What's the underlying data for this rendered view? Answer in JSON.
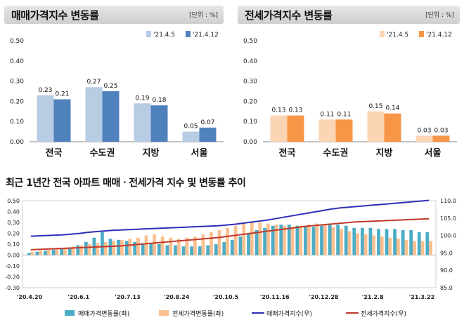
{
  "panels": [
    {
      "title": "매매가격지수 변동률",
      "unit": "[단위 : %]",
      "chart_data": {
        "type": "bar",
        "categories": [
          "전국",
          "수도권",
          "지방",
          "서울"
        ],
        "series": [
          {
            "name": "'21.4.5",
            "values": [
              0.23,
              0.27,
              0.19,
              0.05
            ],
            "color": "#b8cce4"
          },
          {
            "name": "'21.4.12",
            "values": [
              0.21,
              0.25,
              0.18,
              0.07
            ],
            "color": "#4f81bd"
          }
        ],
        "ylim": [
          0,
          0.5
        ],
        "yticks": [
          "0.00",
          "0.10",
          "0.20",
          "0.30",
          "0.40",
          "0.50"
        ],
        "legend": "top-right"
      }
    },
    {
      "title": "전세가격지수 변동률",
      "unit": "[단위 : %]",
      "chart_data": {
        "type": "bar",
        "categories": [
          "전국",
          "수도권",
          "지방",
          "서울"
        ],
        "series": [
          {
            "name": "'21.4.5",
            "values": [
              0.13,
              0.11,
              0.15,
              0.03
            ],
            "color": "#fcd5b4"
          },
          {
            "name": "'21.4.12",
            "values": [
              0.13,
              0.11,
              0.14,
              0.03
            ],
            "color": "#f79646"
          }
        ],
        "ylim": [
          0,
          0.5
        ],
        "yticks": [
          "0.00",
          "0.10",
          "0.20",
          "0.30",
          "0.40",
          "0.50"
        ],
        "legend": "top-right"
      }
    }
  ],
  "trend": {
    "title": "최근 1년간 전국 아파트 매매ㆍ전세가격 지수 및 변동률 추이",
    "chart_data": {
      "type": "bar-line",
      "x_labels": [
        "'20.4.20",
        "'20.6.1",
        "'20.7.13",
        "'20.8.24",
        "'20.10.5",
        "'20.11.16",
        "'20.12.28",
        "'21.2.8",
        "'21.3.22"
      ],
      "y_left_ticks": [
        "-0.30",
        "-0.20",
        "-0.10",
        "0.00",
        "0.10",
        "0.20",
        "0.30",
        "0.40",
        "0.50"
      ],
      "y_left_range": [
        -0.3,
        0.5
      ],
      "y_right_ticks": [
        "85.0",
        "90.0",
        "95.0",
        "100.0",
        "105.0",
        "110.0"
      ],
      "y_right_range": [
        85,
        110
      ],
      "series": [
        {
          "name": "매매가격변동률(좌)",
          "kind": "bar",
          "axis": "left",
          "color": "#4bacc6",
          "values": [
            0.02,
            0.03,
            0.04,
            0.05,
            0.06,
            0.07,
            0.09,
            0.12,
            0.16,
            0.21,
            0.15,
            0.14,
            0.13,
            0.12,
            0.11,
            0.11,
            0.1,
            0.09,
            0.09,
            0.08,
            0.08,
            0.08,
            0.09,
            0.1,
            0.12,
            0.14,
            0.17,
            0.2,
            0.23,
            0.25,
            0.27,
            0.28,
            0.28,
            0.27,
            0.26,
            0.26,
            0.27,
            0.28,
            0.28,
            0.27,
            0.25,
            0.25,
            0.25,
            0.24,
            0.24,
            0.24,
            0.23,
            0.23,
            0.21,
            0.21
          ]
        },
        {
          "name": "전세가격변동률(좌)",
          "kind": "bar",
          "axis": "left",
          "color": "#fac090",
          "values": [
            0.03,
            0.04,
            0.05,
            0.06,
            0.07,
            0.08,
            0.09,
            0.1,
            0.11,
            0.12,
            0.13,
            0.14,
            0.15,
            0.16,
            0.18,
            0.19,
            0.17,
            0.16,
            0.15,
            0.16,
            0.17,
            0.19,
            0.21,
            0.23,
            0.25,
            0.27,
            0.29,
            0.3,
            0.3,
            0.29,
            0.28,
            0.27,
            0.26,
            0.27,
            0.28,
            0.29,
            0.28,
            0.26,
            0.24,
            0.22,
            0.2,
            0.19,
            0.18,
            0.17,
            0.16,
            0.15,
            0.14,
            0.13,
            0.13,
            0.13
          ]
        },
        {
          "name": "매매가격지수(우)",
          "kind": "line",
          "axis": "right",
          "color": "#2e2eb8",
          "values": [
            99.8,
            99.9,
            100.0,
            100.1,
            100.2,
            100.4,
            100.6,
            100.9,
            101.1,
            101.3,
            101.5,
            101.6,
            101.7,
            101.8,
            101.9,
            102.0,
            102.1,
            102.2,
            102.3,
            102.4,
            102.5,
            102.6,
            102.7,
            102.8,
            103.0,
            103.2,
            103.5,
            103.8,
            104.1,
            104.4,
            104.8,
            105.2,
            105.6,
            106.0,
            106.4,
            106.8,
            107.2,
            107.6,
            107.9,
            108.1,
            108.3,
            108.5,
            108.7,
            108.9,
            109.1,
            109.3,
            109.5,
            109.7,
            109.9,
            110.1
          ]
        },
        {
          "name": "전세가격지수(우)",
          "kind": "line",
          "axis": "right",
          "color": "#c0392b",
          "values": [
            95.9,
            96.0,
            96.1,
            96.2,
            96.3,
            96.4,
            96.5,
            96.6,
            96.7,
            96.8,
            96.9,
            97.0,
            97.2,
            97.4,
            97.6,
            97.8,
            98.0,
            98.2,
            98.4,
            98.6,
            98.8,
            99.0,
            99.2,
            99.4,
            99.7,
            100.0,
            100.3,
            100.6,
            100.9,
            101.2,
            101.5,
            101.8,
            102.1,
            102.4,
            102.7,
            102.9,
            103.1,
            103.3,
            103.5,
            103.7,
            103.9,
            104.0,
            104.1,
            104.2,
            104.3,
            104.4,
            104.5,
            104.6,
            104.7,
            104.8
          ]
        }
      ]
    }
  }
}
